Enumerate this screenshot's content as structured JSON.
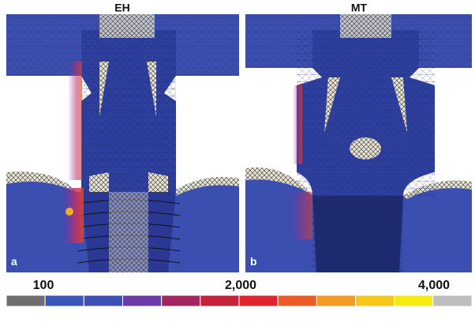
{
  "panels": [
    {
      "title": "EH",
      "label": "a"
    },
    {
      "title": "MT",
      "label": "b"
    }
  ],
  "colorbar": {
    "labels": [
      "100",
      "2,000",
      "4,000"
    ],
    "colors": [
      "#6d6d6d",
      "#3b55b8",
      "#3b4fb4",
      "#6a3aa8",
      "#a3245e",
      "#c42238",
      "#e0262c",
      "#ec5a28",
      "#f29a22",
      "#f5c81a",
      "#f6ea12",
      "#bdbdbd"
    ]
  }
}
